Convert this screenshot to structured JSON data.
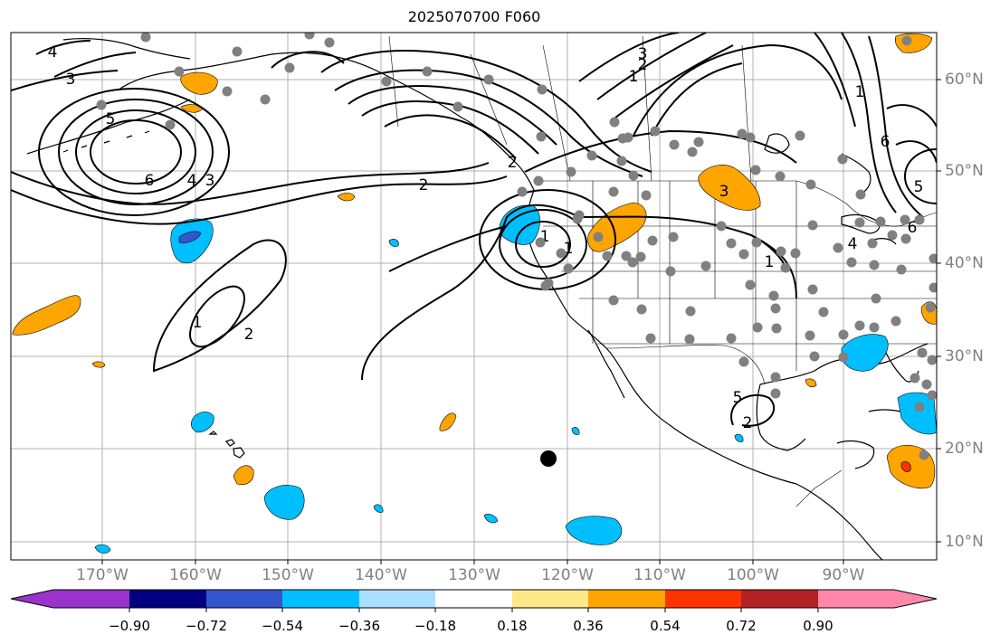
{
  "title": "2025070700 F060",
  "lon_labels": [
    "170°W",
    "160°W",
    "150°W",
    "140°W",
    "130°W",
    "120°W",
    "110°W",
    "100°W",
    "90°W"
  ],
  "lat_labels": [
    "60°N",
    "50°N",
    "40°N",
    "30°N",
    "20°N",
    "10°N"
  ],
  "colorbar": {
    "ticks": [
      "−0.90",
      "−0.72",
      "−0.54",
      "−0.36",
      "−0.18",
      "0.18",
      "0.36",
      "0.54",
      "0.72",
      "0.90"
    ],
    "colors": [
      "#9933cc",
      "#000080",
      "#3355cc",
      "#00bfff",
      "#aadfff",
      "#ffffff",
      "#ffe888",
      "#ffa500",
      "#ff3300",
      "#b22222",
      "#ff88aa"
    ]
  },
  "contour_labels": [
    "4",
    "3",
    "5",
    "6",
    "4",
    "3",
    "2",
    "1",
    "2",
    "1",
    "1",
    "2",
    "3",
    "1",
    "6",
    "5",
    "3",
    "4",
    "5",
    "6",
    "2",
    "1",
    "1",
    "2"
  ],
  "colors": {
    "positive": "#ffa500",
    "positive_strong": "#ff3300",
    "negative": "#00bfff",
    "negative_strong": "#3355cc",
    "negative_extreme": "#9933cc",
    "station_dot": "#808080",
    "grid": "#b0b0b0"
  }
}
